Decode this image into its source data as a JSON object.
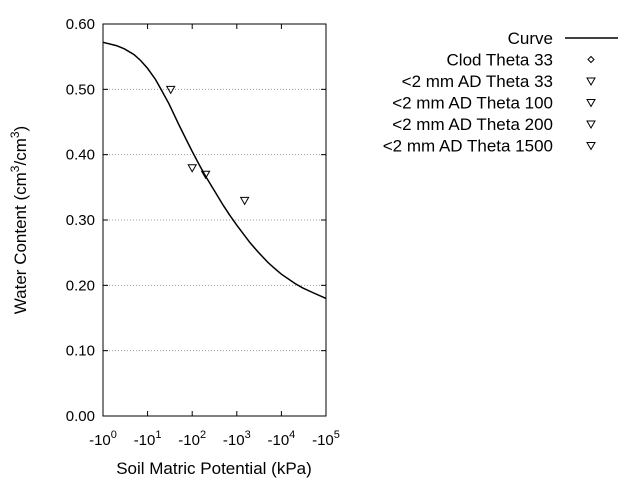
{
  "chart_data": {
    "type": "scatter",
    "title": "",
    "xlabel": "Soil Matric Potential (kPa)",
    "ylabel": "Water Content (cm³/cm³)",
    "x_scale": "log",
    "xlim": [
      1,
      100000
    ],
    "ylim": [
      0.0,
      0.6
    ],
    "y_ticks": [
      "0.00",
      "0.10",
      "0.20",
      "0.30",
      "0.40",
      "0.50",
      "0.60"
    ],
    "x_ticks": [
      {
        "base": "-10",
        "exp": "0"
      },
      {
        "base": "-10",
        "exp": "1"
      },
      {
        "base": "-10",
        "exp": "2"
      },
      {
        "base": "-10",
        "exp": "3"
      },
      {
        "base": "-10",
        "exp": "4"
      },
      {
        "base": "-10",
        "exp": "5"
      }
    ],
    "y_grid": true,
    "legend_position": "right",
    "series": [
      {
        "name": "Curve",
        "kind": "line",
        "x": [
          1,
          2,
          3,
          5,
          7,
          10,
          15,
          20,
          30,
          50,
          70,
          100,
          150,
          200,
          300,
          500,
          700,
          1000,
          1500,
          2000,
          3000,
          5000,
          7000,
          10000,
          20000,
          30000,
          50000,
          100000
        ],
        "y": [
          0.572,
          0.567,
          0.562,
          0.553,
          0.544,
          0.532,
          0.515,
          0.5,
          0.478,
          0.446,
          0.426,
          0.405,
          0.382,
          0.367,
          0.347,
          0.322,
          0.307,
          0.292,
          0.276,
          0.265,
          0.251,
          0.235,
          0.226,
          0.217,
          0.203,
          0.196,
          0.189,
          0.18
        ]
      },
      {
        "name": "Clod Theta 33",
        "kind": "marker",
        "marker": "diamond",
        "x": [],
        "y": []
      },
      {
        "name": "<2 mm AD Theta 33",
        "kind": "marker",
        "marker": "triangle-down",
        "x": [
          33
        ],
        "y": [
          0.5
        ]
      },
      {
        "name": "<2 mm AD Theta 100",
        "kind": "marker",
        "marker": "triangle-down",
        "x": [
          100
        ],
        "y": [
          0.38
        ]
      },
      {
        "name": "<2 mm AD Theta 200",
        "kind": "marker",
        "marker": "triangle-down",
        "x": [
          200
        ],
        "y": [
          0.37
        ]
      },
      {
        "name": "<2 mm AD Theta 1500",
        "kind": "marker",
        "marker": "triangle-down",
        "x": [
          1500
        ],
        "y": [
          0.33
        ]
      }
    ],
    "colors": {
      "line": "#000000",
      "grid": "#999999",
      "marker": "#000000"
    }
  }
}
